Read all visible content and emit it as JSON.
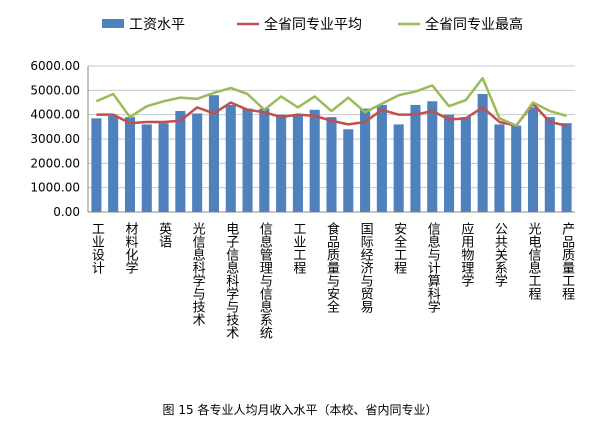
{
  "chart_data": {
    "type": "bar_line",
    "caption": "图 15   各专业人均月收入水平（本校、省内同专业）",
    "categories": [
      "工业设计",
      null,
      "材料化学",
      null,
      "英语",
      null,
      "光信息科学与技术",
      null,
      "电子信息科学与技术",
      null,
      "信息管理与信息系统",
      null,
      "工业工程",
      null,
      "食品质量与安全",
      null,
      "国际经济与贸易",
      null,
      "安全工程",
      null,
      "信息与计算科学",
      null,
      "应用物理学",
      null,
      "公共关系学",
      null,
      "光电信息工程",
      null,
      "产品质量工程"
    ],
    "series": [
      {
        "name": "工资水平",
        "type": "bar",
        "color": "#4f81bd",
        "values": [
          3850,
          3950,
          3900,
          3600,
          3650,
          4150,
          4050,
          4800,
          4400,
          4250,
          4250,
          4000,
          4000,
          4200,
          3900,
          3400,
          4250,
          4400,
          3600,
          4400,
          4550,
          4000,
          3900,
          4850,
          3600,
          3550,
          4300,
          3900,
          3650
        ]
      },
      {
        "name": "全省同专业平均",
        "type": "line",
        "color": "#c0504d",
        "values": [
          4000,
          4000,
          3650,
          3700,
          3700,
          3750,
          4300,
          4050,
          4500,
          4200,
          4100,
          3900,
          4000,
          3950,
          3750,
          3600,
          3700,
          4200,
          4000,
          4000,
          4150,
          3800,
          3850,
          4300,
          3700,
          3550,
          4450,
          3700,
          3550
        ]
      },
      {
        "name": "全省同专业最高",
        "type": "line",
        "color": "#9bbb59",
        "values": [
          4550,
          4850,
          3900,
          4350,
          4550,
          4700,
          4650,
          4900,
          5100,
          4850,
          4200,
          4750,
          4300,
          4750,
          4150,
          4700,
          4100,
          4450,
          4800,
          4950,
          5200,
          4350,
          4600,
          5500,
          3850,
          3550,
          4500,
          4150,
          3950
        ]
      }
    ],
    "ylim": [
      0,
      6000
    ],
    "yticks": [
      {
        "value": 0,
        "label": "0.00"
      },
      {
        "value": 1000,
        "label": "1000.00"
      },
      {
        "value": 2000,
        "label": "2000.00"
      },
      {
        "value": 3000,
        "label": "3000.00"
      },
      {
        "value": 4000,
        "label": "4000.00"
      },
      {
        "value": 5000,
        "label": "5000.00"
      },
      {
        "value": 6000,
        "label": "6000.00"
      }
    ],
    "grid": true,
    "legend": "top"
  }
}
